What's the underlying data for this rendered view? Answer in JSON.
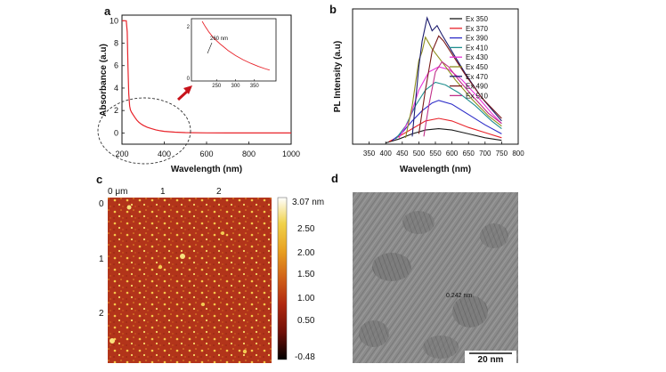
{
  "panels": {
    "a": "a",
    "b": "b",
    "c": "c",
    "d": "d"
  },
  "colors": {
    "absorbance_line": "#e8232a",
    "arrow": "#c8141c",
    "tem_bg": "#8a8a8a",
    "scalebar": "#111111",
    "tem_annotation": "#f2a0c8"
  },
  "chart_data": [
    {
      "panel": "a",
      "type": "line",
      "title": "",
      "xlabel": "Wavelength (nm)",
      "ylabel": "Absorbance (a.u)",
      "xlim": [
        200,
        1000
      ],
      "ylim": [
        -1,
        10.5
      ],
      "xticks": [
        200,
        400,
        600,
        800,
        1000
      ],
      "yticks": [
        0,
        2,
        4,
        6,
        8,
        10
      ],
      "x": [
        200,
        210,
        220,
        225,
        228,
        232,
        236,
        240,
        245,
        250,
        255,
        260,
        270,
        280,
        290,
        300,
        320,
        340,
        360,
        380,
        400,
        450,
        500,
        600,
        700,
        800,
        900,
        1000
      ],
      "y": [
        10,
        10,
        10,
        9.0,
        6.0,
        3.5,
        2.4,
        2.05,
        1.85,
        1.7,
        1.55,
        1.4,
        1.15,
        0.95,
        0.8,
        0.68,
        0.5,
        0.38,
        0.28,
        0.2,
        0.14,
        0.07,
        0.03,
        0.01,
        0.0,
        0.0,
        0.0,
        0.0
      ],
      "grid": false,
      "inset": {
        "xlim": [
          200,
          400
        ],
        "ylim": [
          0,
          2.2
        ],
        "xticks": [
          250,
          300,
          350
        ],
        "yticks": [
          0,
          2
        ],
        "annotation": "260 nm",
        "x": [
          212,
          220,
          230,
          240,
          250,
          260,
          270,
          280,
          300,
          320,
          340,
          360,
          380,
          390
        ],
        "y": [
          2.2,
          2.0,
          1.78,
          1.6,
          1.45,
          1.32,
          1.2,
          1.08,
          0.88,
          0.72,
          0.58,
          0.46,
          0.36,
          0.32
        ]
      }
    },
    {
      "panel": "b",
      "type": "line",
      "title": "",
      "xlabel": "Wavelength (nm)",
      "ylabel": "PL Intensity (a.u)",
      "xlim": [
        300,
        800
      ],
      "xticks": [
        350,
        400,
        450,
        500,
        550,
        600,
        650,
        700,
        750,
        800
      ],
      "ylim": [
        0,
        1.05
      ],
      "grid": false,
      "legend_placement": "top-right",
      "series": [
        {
          "name": "Ex 350",
          "color": "#1a1a1a",
          "x": [
            400,
            440,
            480,
            520,
            560,
            600,
            650,
            700,
            750
          ],
          "y": [
            0.01,
            0.04,
            0.08,
            0.11,
            0.12,
            0.11,
            0.08,
            0.05,
            0.03
          ]
        },
        {
          "name": "Ex 370",
          "color": "#e8232a",
          "x": [
            410,
            440,
            480,
            520,
            560,
            600,
            650,
            700,
            750
          ],
          "y": [
            0.02,
            0.06,
            0.12,
            0.18,
            0.2,
            0.18,
            0.13,
            0.09,
            0.05
          ]
        },
        {
          "name": "Ex 390",
          "color": "#2c2cc8",
          "x": [
            420,
            450,
            480,
            510,
            540,
            560,
            600,
            650,
            700,
            750
          ],
          "y": [
            0.03,
            0.09,
            0.18,
            0.26,
            0.32,
            0.34,
            0.31,
            0.23,
            0.15,
            0.08
          ]
        },
        {
          "name": "Ex 410",
          "color": "#1f8f8f",
          "x": [
            430,
            460,
            490,
            520,
            550,
            580,
            620,
            670,
            720,
            750
          ],
          "y": [
            0.04,
            0.14,
            0.3,
            0.42,
            0.48,
            0.46,
            0.4,
            0.3,
            0.18,
            0.12
          ]
        },
        {
          "name": "Ex 430",
          "color": "#e832d8",
          "x": [
            440,
            470,
            500,
            530,
            560,
            590,
            630,
            680,
            720,
            750
          ],
          "y": [
            0.05,
            0.18,
            0.42,
            0.56,
            0.6,
            0.58,
            0.5,
            0.36,
            0.24,
            0.16
          ]
        },
        {
          "name": "Ex 450",
          "color": "#8f8f1f",
          "x": [
            460,
            480,
            500,
            510,
            520,
            540,
            570,
            610,
            660,
            710,
            750
          ],
          "y": [
            0.05,
            0.3,
            0.65,
            0.72,
            0.83,
            0.74,
            0.64,
            0.5,
            0.35,
            0.22,
            0.14
          ]
        },
        {
          "name": "Ex 470",
          "color": "#1c1c6e",
          "x": [
            480,
            500,
            510,
            525,
            540,
            555,
            570,
            600,
            640,
            690,
            750
          ],
          "y": [
            0.06,
            0.6,
            0.8,
            0.98,
            0.88,
            0.92,
            0.85,
            0.72,
            0.55,
            0.36,
            0.18
          ]
        },
        {
          "name": "Ex 490",
          "color": "#7a1a1a",
          "x": [
            500,
            520,
            540,
            560,
            575,
            600,
            640,
            690,
            750
          ],
          "y": [
            0.08,
            0.42,
            0.72,
            0.84,
            0.8,
            0.7,
            0.54,
            0.36,
            0.2
          ]
        },
        {
          "name": "Ex 510",
          "color": "#c0308a",
          "x": [
            515,
            530,
            550,
            570,
            590,
            620,
            660,
            710,
            750
          ],
          "y": [
            0.06,
            0.3,
            0.56,
            0.64,
            0.6,
            0.5,
            0.38,
            0.24,
            0.16
          ]
        }
      ]
    }
  ],
  "afm": {
    "x_ticks": [
      "0 μm",
      "1",
      "2"
    ],
    "y_ticks": [
      "0",
      "1",
      "2"
    ],
    "colorbar_ticks": [
      "3.07 nm",
      "2.50",
      "2.00",
      "1.50",
      "1.00",
      "0.50",
      "-0.48"
    ],
    "colorbar_colors": [
      "#ffffff",
      "#f0d24a",
      "#e8a020",
      "#d06018",
      "#b02810",
      "#701008",
      "#000000"
    ]
  },
  "tem": {
    "annotation": "0.242 nm",
    "scalebar_label": "20 nm"
  }
}
